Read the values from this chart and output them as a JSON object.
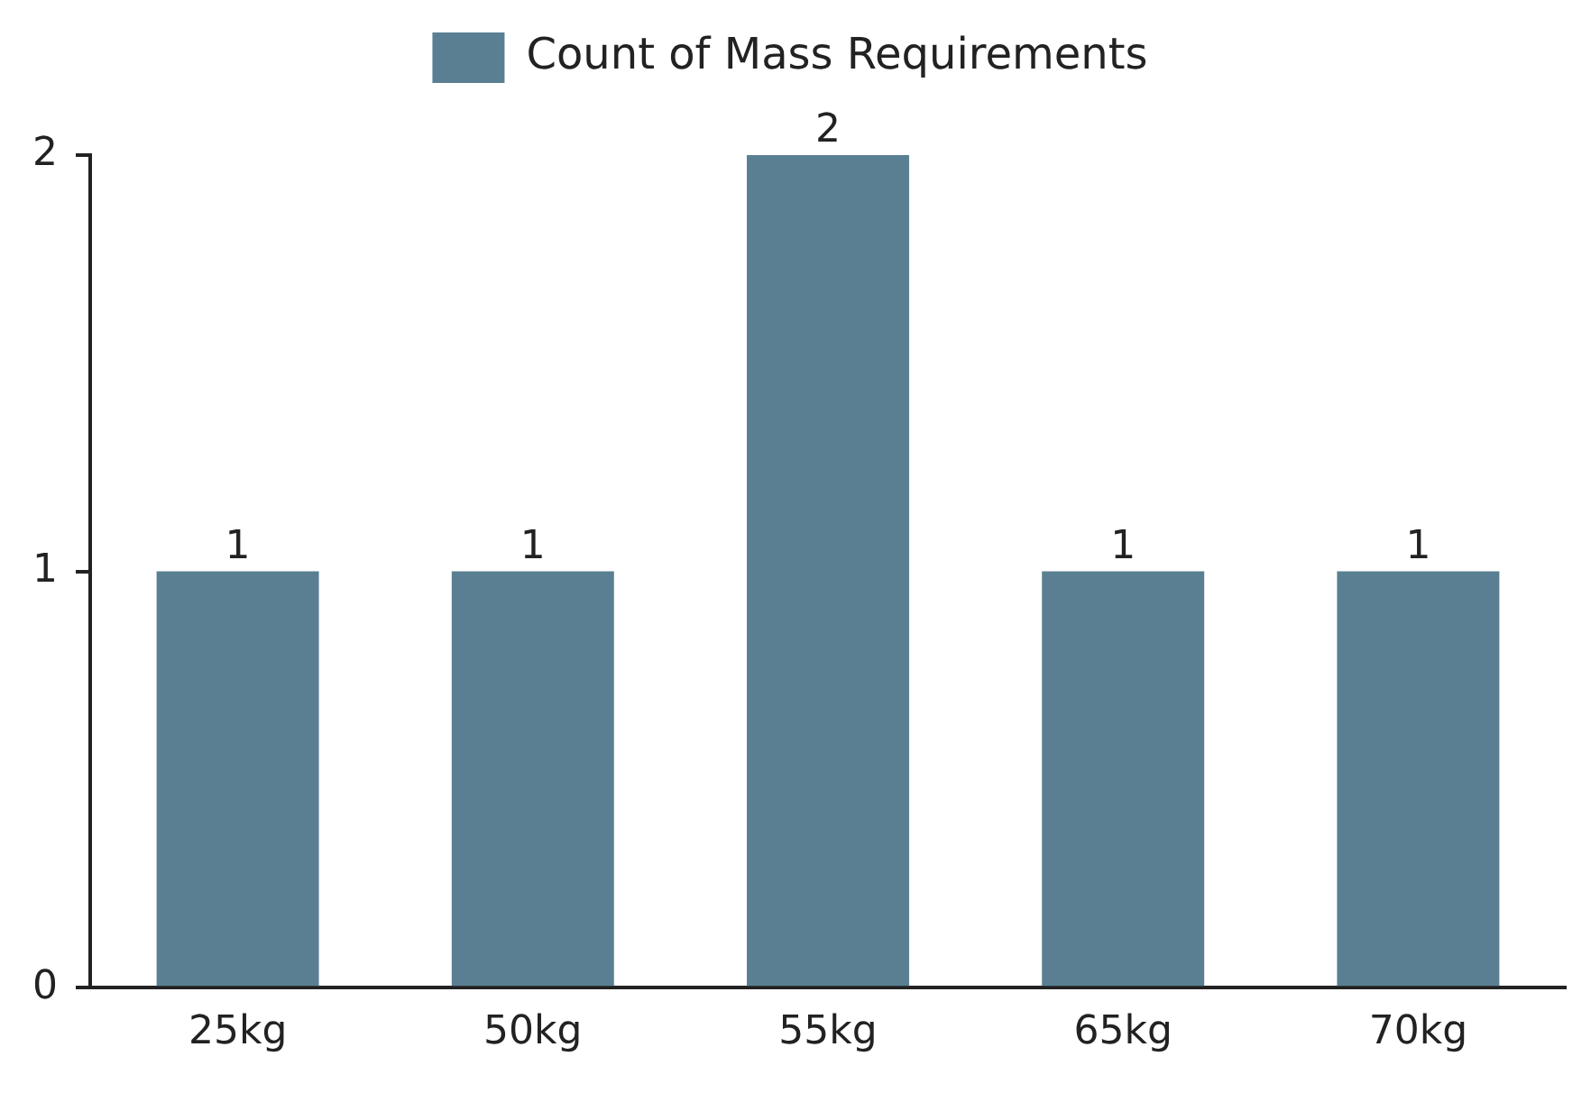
{
  "chart_data": {
    "type": "bar",
    "categories": [
      "25kg",
      "50kg",
      "55kg",
      "65kg",
      "70kg"
    ],
    "series": [
      {
        "name": "Count of Mass Requirements",
        "color": "#5a7f93",
        "values": [
          1,
          1,
          2,
          1,
          1
        ]
      }
    ],
    "ylim": [
      0,
      2
    ],
    "yticks": [
      0,
      1,
      2
    ],
    "grid": false,
    "legend": "top",
    "data_labels": true
  }
}
